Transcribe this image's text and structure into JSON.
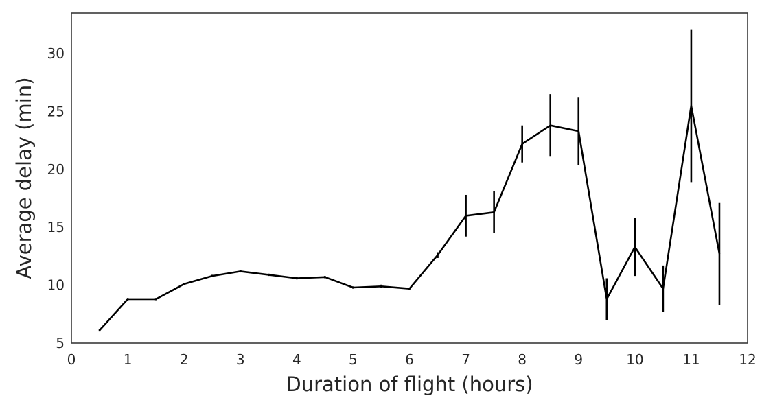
{
  "chart_data": {
    "type": "line",
    "xlabel": "Duration of flight (hours)",
    "ylabel": "Average delay (min)",
    "xlim": [
      0,
      12
    ],
    "ylim": [
      5,
      33.5
    ],
    "xticks": [
      0,
      1,
      2,
      3,
      4,
      5,
      6,
      7,
      8,
      9,
      10,
      11,
      12
    ],
    "yticks": [
      5,
      10,
      15,
      20,
      25,
      30
    ],
    "grid": false,
    "series": [
      {
        "color": "#000000",
        "points": [
          {
            "x": 0.5,
            "y": 6.1,
            "err": 0.1
          },
          {
            "x": 1.0,
            "y": 8.8,
            "err": 0.1
          },
          {
            "x": 1.5,
            "y": 8.8,
            "err": 0.1
          },
          {
            "x": 2.0,
            "y": 10.1,
            "err": 0.1
          },
          {
            "x": 2.5,
            "y": 10.8,
            "err": 0.1
          },
          {
            "x": 3.0,
            "y": 11.2,
            "err": 0.1
          },
          {
            "x": 3.5,
            "y": 10.9,
            "err": 0.1
          },
          {
            "x": 4.0,
            "y": 10.6,
            "err": 0.1
          },
          {
            "x": 4.5,
            "y": 10.7,
            "err": 0.1
          },
          {
            "x": 5.0,
            "y": 9.8,
            "err": 0.1
          },
          {
            "x": 5.5,
            "y": 9.9,
            "err": 0.15
          },
          {
            "x": 6.0,
            "y": 9.7,
            "err": 0.1
          },
          {
            "x": 6.5,
            "y": 12.6,
            "err": 0.25
          },
          {
            "x": 7.0,
            "y": 16.0,
            "err": 1.8
          },
          {
            "x": 7.5,
            "y": 16.3,
            "err": 1.8
          },
          {
            "x": 8.0,
            "y": 22.2,
            "err": 1.6
          },
          {
            "x": 8.5,
            "y": 23.8,
            "err": 2.7
          },
          {
            "x": 9.0,
            "y": 23.3,
            "err": 2.9
          },
          {
            "x": 9.5,
            "y": 8.8,
            "err": 1.8
          },
          {
            "x": 10.0,
            "y": 13.3,
            "err": 2.5
          },
          {
            "x": 10.5,
            "y": 9.7,
            "err": 2.0
          },
          {
            "x": 11.0,
            "y": 25.5,
            "err": 6.6
          },
          {
            "x": 11.5,
            "y": 12.7,
            "err": 4.4
          }
        ]
      }
    ]
  }
}
